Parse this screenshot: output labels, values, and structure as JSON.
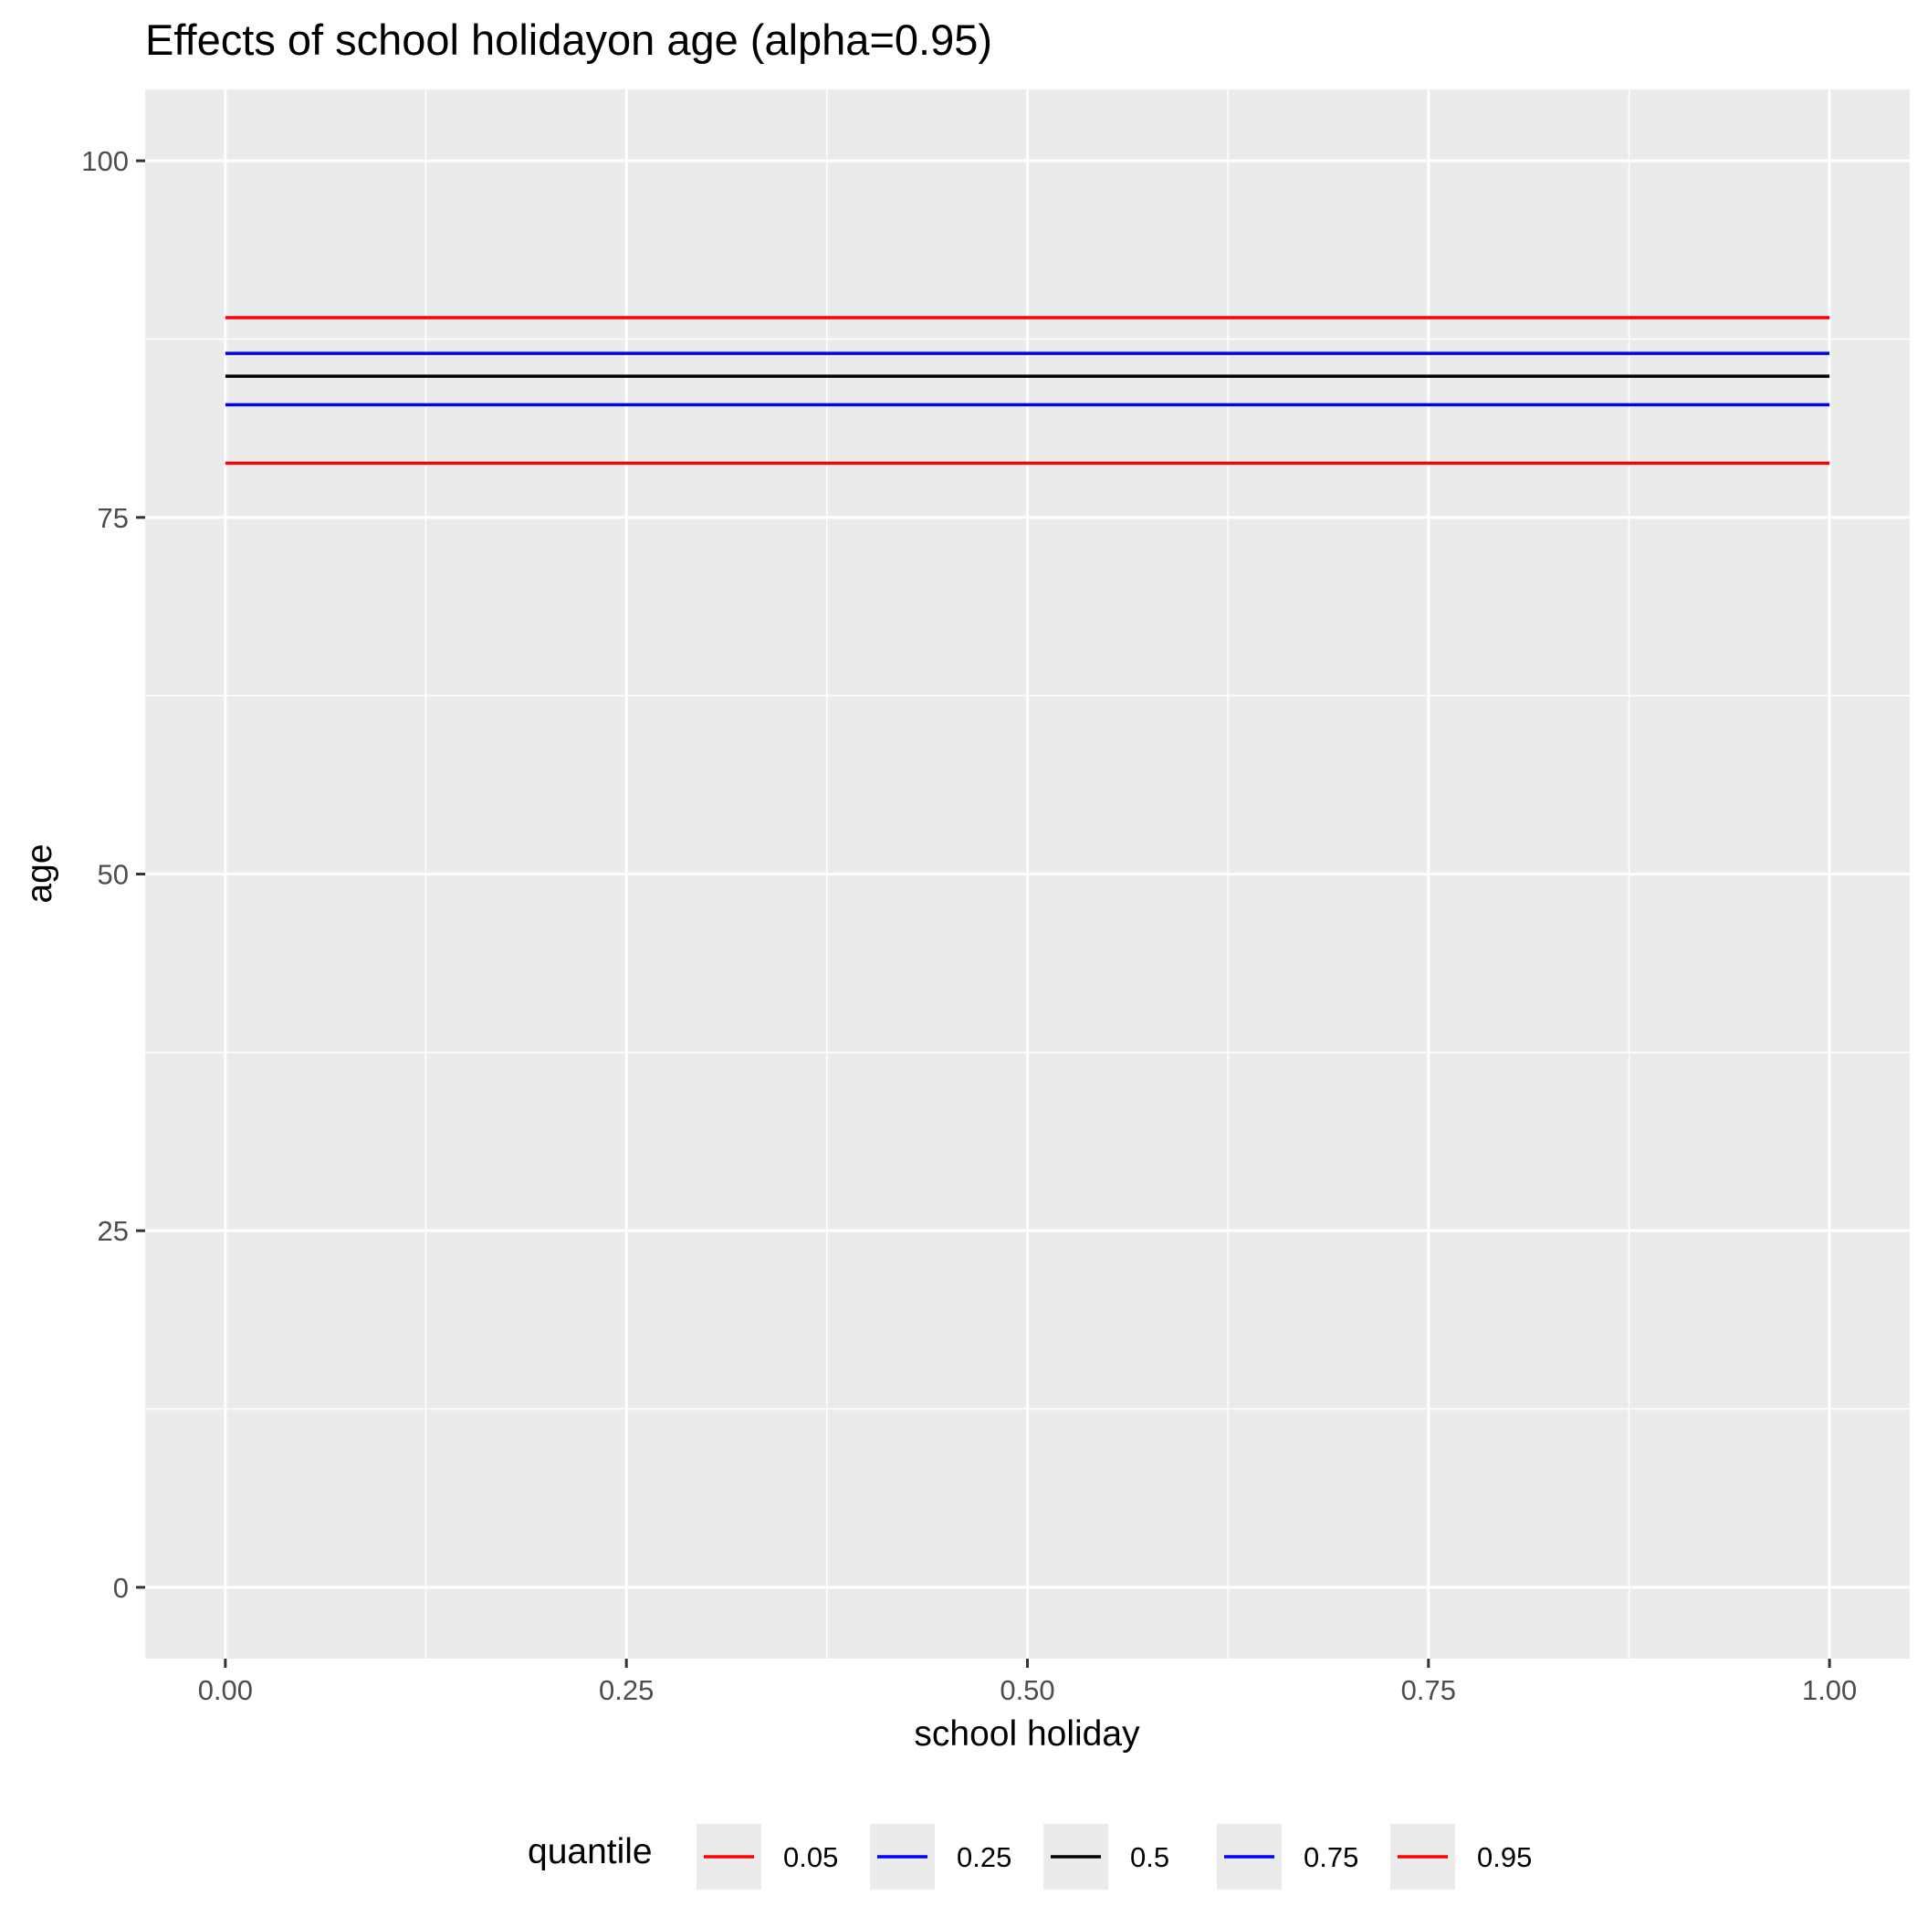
{
  "chart_data": {
    "type": "line",
    "title": "Effects of school holidayon age (alpha=0.95)",
    "xlabel": "school holiday",
    "ylabel": "age",
    "xlim": [
      -0.05,
      1.05
    ],
    "ylim": [
      -5,
      105
    ],
    "x_ticks": [
      0,
      0.25,
      0.5,
      0.75,
      1
    ],
    "x_tick_labels": [
      "0.00",
      "0.25",
      "0.50",
      "0.75",
      "1.00"
    ],
    "y_ticks": [
      0,
      25,
      50,
      75,
      100
    ],
    "y_tick_labels": [
      "0",
      "25",
      "50",
      "75",
      "100"
    ],
    "grid": true,
    "panel_background": "#ebebeb",
    "legend": {
      "title": "quantile",
      "position": "bottom"
    },
    "series": [
      {
        "name": "0.05",
        "color": "#ff0000",
        "x": [
          0,
          1
        ],
        "y": [
          78.8,
          78.8
        ]
      },
      {
        "name": "0.25",
        "color": "#0000ff",
        "x": [
          0,
          1
        ],
        "y": [
          82.9,
          82.9
        ]
      },
      {
        "name": "0.5",
        "color": "#000000",
        "x": [
          0,
          1
        ],
        "y": [
          84.9,
          84.9
        ]
      },
      {
        "name": "0.75",
        "color": "#0000ff",
        "x": [
          0,
          1
        ],
        "y": [
          86.5,
          86.5
        ]
      },
      {
        "name": "0.95",
        "color": "#ff0000",
        "x": [
          0,
          1
        ],
        "y": [
          89.0,
          89.0
        ]
      }
    ]
  }
}
